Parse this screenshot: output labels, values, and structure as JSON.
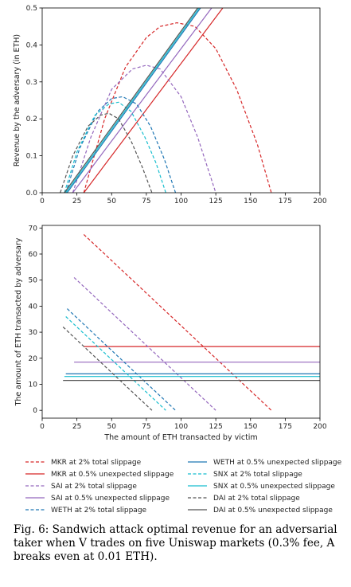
{
  "chart_data": [
    {
      "type": "line",
      "ylabel": "Revenue by the adversary (in ETH)",
      "xlabel": "",
      "xlim": [
        0,
        200
      ],
      "ylim": [
        0,
        0.5
      ],
      "xticks": [
        0,
        25,
        50,
        75,
        100,
        125,
        150,
        175,
        200
      ],
      "yticks": [
        0.0,
        0.1,
        0.2,
        0.3,
        0.4,
        0.5
      ],
      "grid": false,
      "series": [
        {
          "name": "MKR at 2% total slippage",
          "color": "#d62728",
          "dashed": true,
          "x": [
            30,
            45,
            60,
            75,
            85,
            97,
            110,
            125,
            140,
            155,
            165
          ],
          "y": [
            0.0,
            0.2,
            0.34,
            0.42,
            0.45,
            0.46,
            0.45,
            0.39,
            0.28,
            0.13,
            0.0
          ]
        },
        {
          "name": "MKR at 0.5% unexpected slippage",
          "color": "#d62728",
          "dashed": false,
          "x": [
            30,
            130
          ],
          "y": [
            0.0,
            0.5
          ]
        },
        {
          "name": "SAI at 2% total slippage",
          "color": "#9467bd",
          "dashed": true,
          "x": [
            22,
            35,
            50,
            65,
            75,
            85,
            100,
            112,
            125
          ],
          "y": [
            0.0,
            0.15,
            0.28,
            0.335,
            0.345,
            0.335,
            0.26,
            0.15,
            0.0
          ]
        },
        {
          "name": "SAI at 0.5% unexpected slippage",
          "color": "#9467bd",
          "dashed": false,
          "x": [
            22,
            122
          ],
          "y": [
            0.0,
            0.5
          ]
        },
        {
          "name": "WETH at 2% total slippage",
          "color": "#1f77b4",
          "dashed": true,
          "x": [
            17,
            27,
            40,
            50,
            58,
            68,
            78,
            88,
            96
          ],
          "y": [
            0.0,
            0.12,
            0.22,
            0.255,
            0.26,
            0.24,
            0.18,
            0.09,
            0.0
          ]
        },
        {
          "name": "WETH at 0.5% unexpected slippage",
          "color": "#1f77b4",
          "dashed": false,
          "x": [
            18,
            114
          ],
          "y": [
            0.0,
            0.5
          ]
        },
        {
          "name": "SNX at 2% total slippage",
          "color": "#17becf",
          "dashed": true,
          "x": [
            16,
            25,
            38,
            48,
            55,
            64,
            74,
            82,
            89
          ],
          "y": [
            0.0,
            0.11,
            0.21,
            0.24,
            0.245,
            0.22,
            0.15,
            0.08,
            0.0
          ]
        },
        {
          "name": "SNX at 0.5% unexpected slippage",
          "color": "#17becf",
          "dashed": false,
          "x": [
            17,
            113
          ],
          "y": [
            0.0,
            0.5
          ]
        },
        {
          "name": "DAI at 2% total slippage",
          "color": "#555555",
          "dashed": true,
          "x": [
            13,
            22,
            33,
            42,
            48,
            55,
            64,
            72,
            79
          ],
          "y": [
            0.0,
            0.1,
            0.18,
            0.21,
            0.215,
            0.2,
            0.14,
            0.07,
            0.0
          ]
        },
        {
          "name": "DAI at 0.5% unexpected slippage",
          "color": "#555555",
          "dashed": false,
          "x": [
            16,
            112
          ],
          "y": [
            0.0,
            0.5
          ]
        }
      ]
    },
    {
      "type": "line",
      "xlabel": "The amount of ETH transacted by victim",
      "ylabel": "The amount of ETH transacted by adversary",
      "xlim": [
        0,
        200
      ],
      "ylim": [
        -3,
        71
      ],
      "xticks": [
        0,
        25,
        50,
        75,
        100,
        125,
        150,
        175,
        200
      ],
      "yticks": [
        0,
        10,
        20,
        30,
        40,
        50,
        60,
        70
      ],
      "grid": false,
      "series": [
        {
          "name": "MKR at 2% total slippage",
          "color": "#d62728",
          "dashed": true,
          "x": [
            30,
            165
          ],
          "y": [
            67.5,
            0
          ]
        },
        {
          "name": "MKR at 0.5% unexpected slippage",
          "color": "#d62728",
          "dashed": false,
          "x": [
            30,
            200
          ],
          "y": [
            24.5,
            24.5
          ]
        },
        {
          "name": "SAI at 2% total slippage",
          "color": "#9467bd",
          "dashed": true,
          "x": [
            23,
            125
          ],
          "y": [
            51,
            0
          ]
        },
        {
          "name": "SAI at 0.5% unexpected slippage",
          "color": "#9467bd",
          "dashed": false,
          "x": [
            23,
            200
          ],
          "y": [
            18.5,
            18.5
          ]
        },
        {
          "name": "WETH at 2% total slippage",
          "color": "#1f77b4",
          "dashed": true,
          "x": [
            18,
            96
          ],
          "y": [
            39,
            0
          ]
        },
        {
          "name": "WETH at 0.5% unexpected slippage",
          "color": "#1f77b4",
          "dashed": false,
          "x": [
            17,
            200
          ],
          "y": [
            14,
            14
          ]
        },
        {
          "name": "SNX at 2% total slippage",
          "color": "#17becf",
          "dashed": true,
          "x": [
            17,
            89
          ],
          "y": [
            36,
            0
          ]
        },
        {
          "name": "SNX at 0.5% unexpected slippage",
          "color": "#17becf",
          "dashed": false,
          "x": [
            16,
            200
          ],
          "y": [
            13,
            13
          ]
        },
        {
          "name": "DAI at 2% total slippage",
          "color": "#555555",
          "dashed": true,
          "x": [
            15,
            79
          ],
          "y": [
            32,
            0
          ]
        },
        {
          "name": "DAI at 0.5% unexpected slippage",
          "color": "#555555",
          "dashed": false,
          "x": [
            15,
            200
          ],
          "y": [
            11.5,
            11.5
          ]
        }
      ]
    }
  ],
  "legend": {
    "left": [
      {
        "label": "MKR at 2% total slippage",
        "color": "#d62728",
        "dashed": true
      },
      {
        "label": "MKR at 0.5% unexpected slippage",
        "color": "#d62728",
        "dashed": false
      },
      {
        "label": "SAI at 2% total slippage",
        "color": "#9467bd",
        "dashed": true
      },
      {
        "label": "SAI at 0.5% unexpected slippage",
        "color": "#9467bd",
        "dashed": false
      },
      {
        "label": "WETH at 2% total slippage",
        "color": "#1f77b4",
        "dashed": true
      }
    ],
    "right": [
      {
        "label": "WETH at 0.5% unexpected slippage",
        "color": "#1f77b4",
        "dashed": false
      },
      {
        "label": "SNX at 2% total slippage",
        "color": "#17becf",
        "dashed": true
      },
      {
        "label": "SNX at 0.5% unexpected slippage",
        "color": "#17becf",
        "dashed": false
      },
      {
        "label": "DAI at 2% total slippage",
        "color": "#555555",
        "dashed": true
      },
      {
        "label": "DAI at 0.5% unexpected slippage",
        "color": "#555555",
        "dashed": false
      }
    ]
  },
  "caption": "Fig. 6: Sandwich attack optimal revenue for an adversarial taker when V trades on five Uniswap markets (0.3% fee, A breaks even at 0.01 ETH)."
}
